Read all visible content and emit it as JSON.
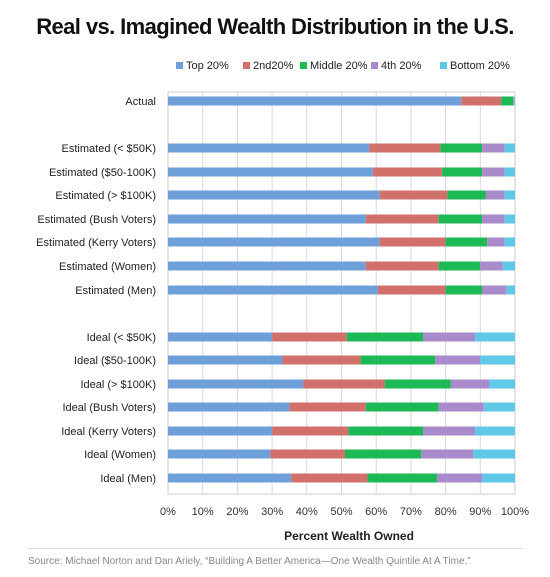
{
  "title": "Real vs. Imagined Wealth Distribution in the U.S.",
  "source": "Source: Michael Norton and Dan Ariely, “Building A Better America—One Wealth Quintile At A Time.”",
  "chart_data": {
    "type": "bar",
    "orientation": "horizontal",
    "stacked": true,
    "xlabel": "Percent Wealth Owned",
    "ylabel": "",
    "xlim": [
      0,
      100
    ],
    "xticks": [
      "0%",
      "10%",
      "20%",
      "30%",
      "40%",
      "50%",
      "60%",
      "70%",
      "80%",
      "90%",
      "100%"
    ],
    "grid": true,
    "legend_position": "top",
    "categories": [
      "Actual",
      "Estimated (< $50K)",
      "Estimated ($50-100K)",
      "Estimated (> $100K)",
      "Estimated (Bush Voters)",
      "Estimated (Kerry Voters)",
      "Estimated (Women)",
      "Estimated (Men)",
      "Ideal (< $50K)",
      "Ideal ($50-100K)",
      "Ideal (> $100K)",
      "Ideal (Bush Voters)",
      "Ideal (Kerry Voters)",
      "Ideal (Women)",
      "Ideal (Men)"
    ],
    "series": [
      {
        "name": "Top 20%",
        "color": "#6f9fd8",
        "values": [
          84.5,
          58,
          59,
          61,
          57,
          61,
          57,
          60.5,
          30,
          33,
          39,
          35,
          30,
          29.5,
          35.5
        ]
      },
      {
        "name": "2nd20%",
        "color": "#d2706b",
        "values": [
          11.5,
          20.5,
          20,
          19.5,
          21,
          19,
          21,
          19.5,
          21.5,
          22.5,
          23.5,
          22,
          22,
          21.5,
          22
        ]
      },
      {
        "name": "Middle 20%",
        "color": "#1db954",
        "values": [
          3.5,
          12,
          11.5,
          11,
          12.5,
          12,
          12,
          10.5,
          22,
          21.5,
          19,
          21,
          21.5,
          22,
          20
        ]
      },
      {
        "name": "4th 20%",
        "color": "#a98bcb",
        "values": [
          0.3,
          6.5,
          6.5,
          5.5,
          6.5,
          5,
          6.5,
          7,
          15,
          13,
          11,
          13,
          15,
          15,
          13
        ]
      },
      {
        "name": "Bottom 20%",
        "color": "#5ec8e6",
        "values": [
          0.2,
          3,
          3,
          3,
          3,
          3,
          3.5,
          2.5,
          11.5,
          10,
          7.5,
          9,
          11.5,
          12,
          9.5
        ]
      }
    ]
  }
}
